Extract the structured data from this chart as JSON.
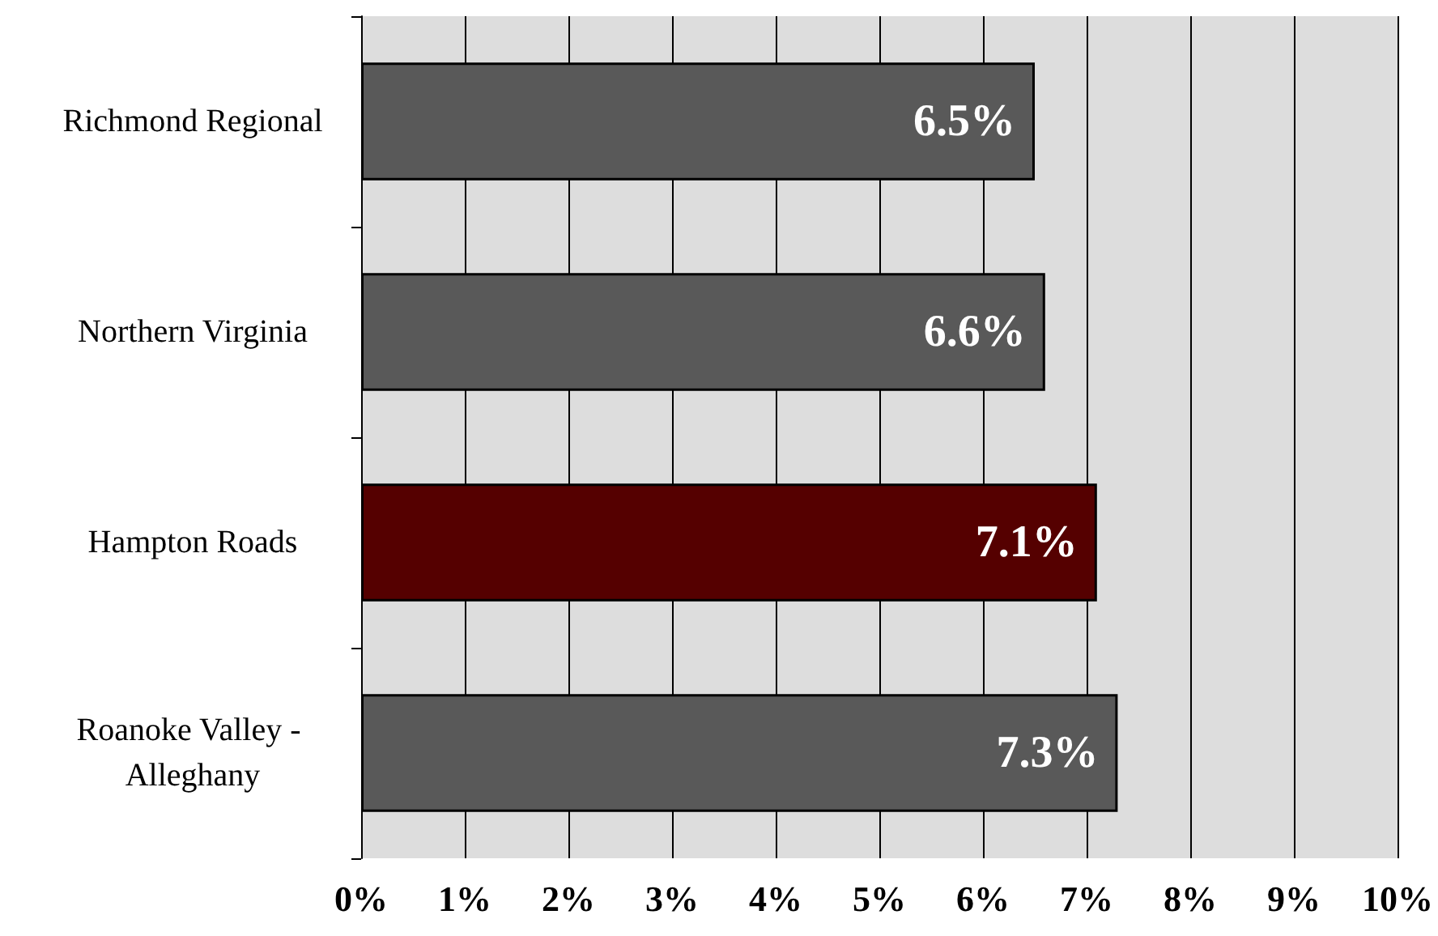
{
  "chart_data": {
    "type": "bar",
    "orientation": "horizontal",
    "categories": [
      "Richmond Regional",
      "Northern Virginia",
      "Hampton Roads",
      "Roanoke Valley - Alleghany"
    ],
    "values": [
      6.5,
      6.6,
      7.1,
      7.3
    ],
    "colors": [
      "#595959",
      "#595959",
      "#550000",
      "#595959"
    ],
    "value_labels": [
      "6.5%",
      "6.6%",
      "7.1%",
      "7.3%"
    ],
    "xlim": [
      0,
      10
    ],
    "xticks": [
      {
        "value": 0,
        "label": "0%"
      },
      {
        "value": 1,
        "label": "1%"
      },
      {
        "value": 2,
        "label": "2%"
      },
      {
        "value": 3,
        "label": "3%"
      },
      {
        "value": 4,
        "label": "4%"
      },
      {
        "value": 5,
        "label": "5%"
      },
      {
        "value": 6,
        "label": "6%"
      },
      {
        "value": 7,
        "label": "7%"
      },
      {
        "value": 8,
        "label": "8%"
      },
      {
        "value": 9,
        "label": "9%"
      },
      {
        "value": 10,
        "label": "10%"
      }
    ],
    "grid": "x"
  }
}
